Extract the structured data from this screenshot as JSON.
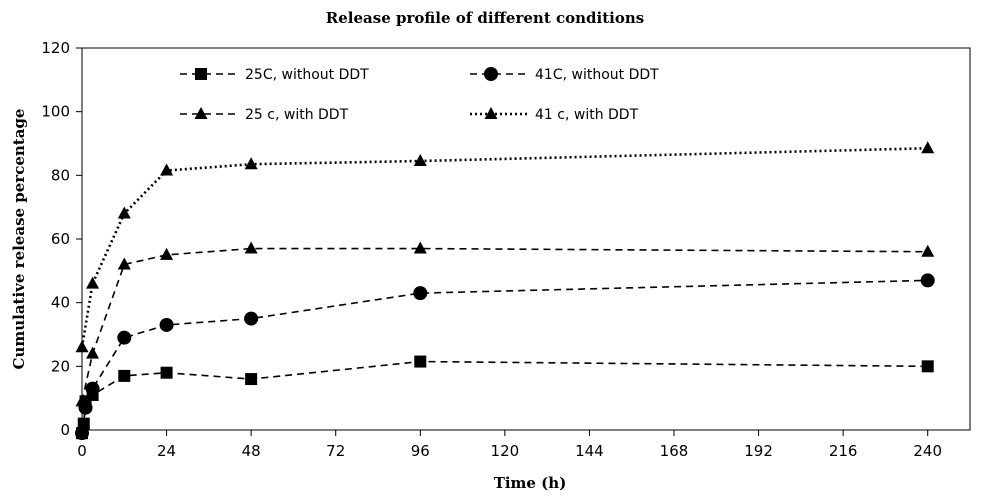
{
  "chart_data": {
    "type": "line",
    "title": "Release profile of different conditions",
    "xlabel": "Time (h)",
    "ylabel": "Cumulative release percentage",
    "xlim": [
      0,
      252
    ],
    "ylim": [
      0,
      120
    ],
    "xticks": [
      0,
      24,
      48,
      72,
      96,
      120,
      144,
      168,
      192,
      216,
      240
    ],
    "yticks": [
      0,
      20,
      40,
      60,
      80,
      100,
      120
    ],
    "grid": false,
    "legend_position": "top",
    "series": [
      {
        "name": "25C, without DDT",
        "marker": "square",
        "dash": "dashed",
        "x": [
          0,
          0.5,
          1,
          3,
          12,
          24,
          48,
          96,
          240
        ],
        "y": [
          -1,
          2,
          9,
          11,
          17,
          18,
          16,
          21.5,
          20
        ]
      },
      {
        "name": "41C, without DDT",
        "marker": "circle",
        "dash": "dashed",
        "x": [
          0,
          1,
          3,
          12,
          24,
          48,
          96,
          240
        ],
        "y": [
          -1,
          7,
          13,
          29,
          33,
          35,
          43,
          47
        ]
      },
      {
        "name": "25 c, with DDT",
        "marker": "triangle",
        "dash": "dashed",
        "x": [
          0,
          3,
          12,
          24,
          48,
          96,
          240
        ],
        "y": [
          9,
          24,
          52,
          55,
          57,
          57,
          56
        ]
      },
      {
        "name": "41 c, with DDT",
        "marker": "triangle",
        "dash": "dotted",
        "x": [
          0,
          3,
          12,
          24,
          48,
          96,
          240
        ],
        "y": [
          26,
          46,
          68,
          81.5,
          83.5,
          84.5,
          88.5
        ]
      }
    ]
  }
}
